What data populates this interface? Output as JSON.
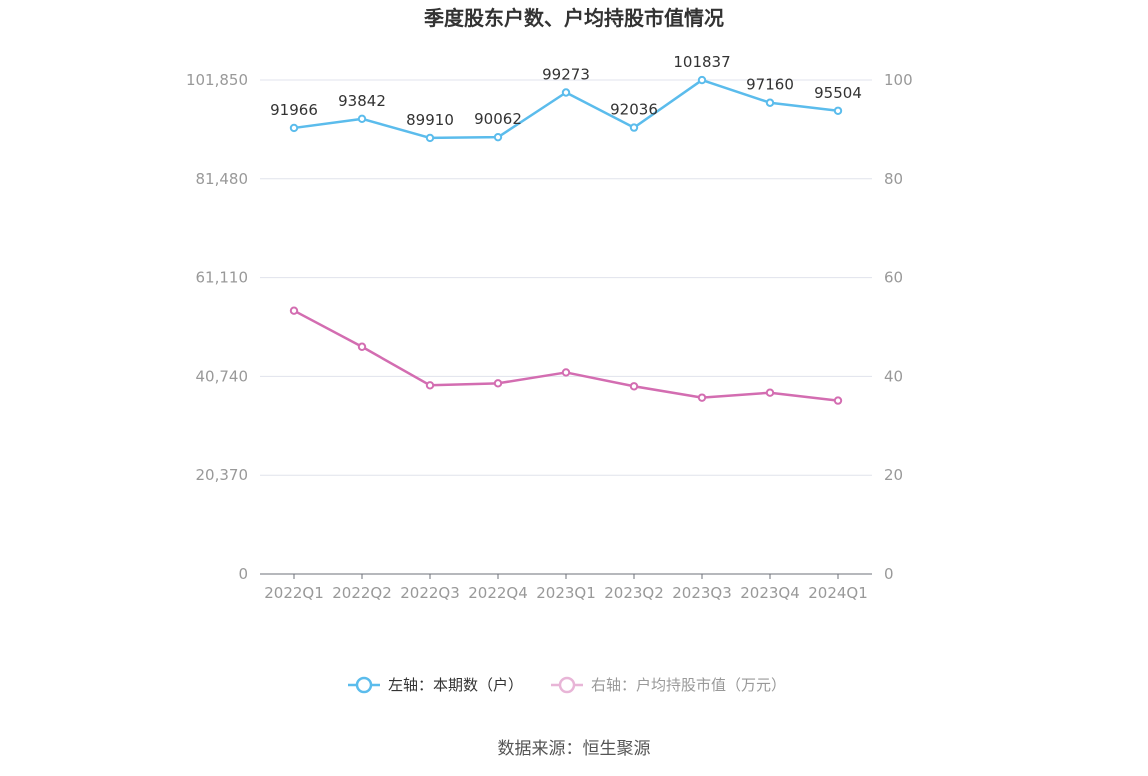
{
  "chart_data": {
    "type": "line",
    "title": "季度股东户数、户均持股市值情况",
    "categories": [
      "2022Q1",
      "2022Q2",
      "2022Q3",
      "2022Q4",
      "2023Q1",
      "2023Q2",
      "2023Q3",
      "2023Q4",
      "2024Q1"
    ],
    "left_axis": {
      "ylim": [
        0,
        101850
      ],
      "ticks": [
        "0",
        "20,370",
        "40,740",
        "61,110",
        "81,480",
        "101,850"
      ]
    },
    "right_axis": {
      "ylim": [
        0,
        100
      ],
      "ticks": [
        "0",
        "20",
        "40",
        "60",
        "80",
        "100"
      ]
    },
    "grid": true,
    "legend_position": "bottom",
    "series": [
      {
        "name": "左轴：本期数（户）",
        "axis": "left",
        "color": "#5bbcec",
        "values": [
          91966,
          93842,
          89910,
          90062,
          99273,
          92036,
          101837,
          97160,
          95504
        ],
        "labels": [
          "91966",
          "93842",
          "89910",
          "90062",
          "99273",
          "92036",
          "101837",
          "97160",
          "95504"
        ]
      },
      {
        "name": "右轴：户均持股市值（万元）",
        "axis": "right",
        "color": "#d36db1",
        "values": [
          53.3,
          46.0,
          38.2,
          38.6,
          40.8,
          38.0,
          35.7,
          36.7,
          35.1
        ]
      }
    ]
  },
  "source": "数据来源：恒生聚源"
}
